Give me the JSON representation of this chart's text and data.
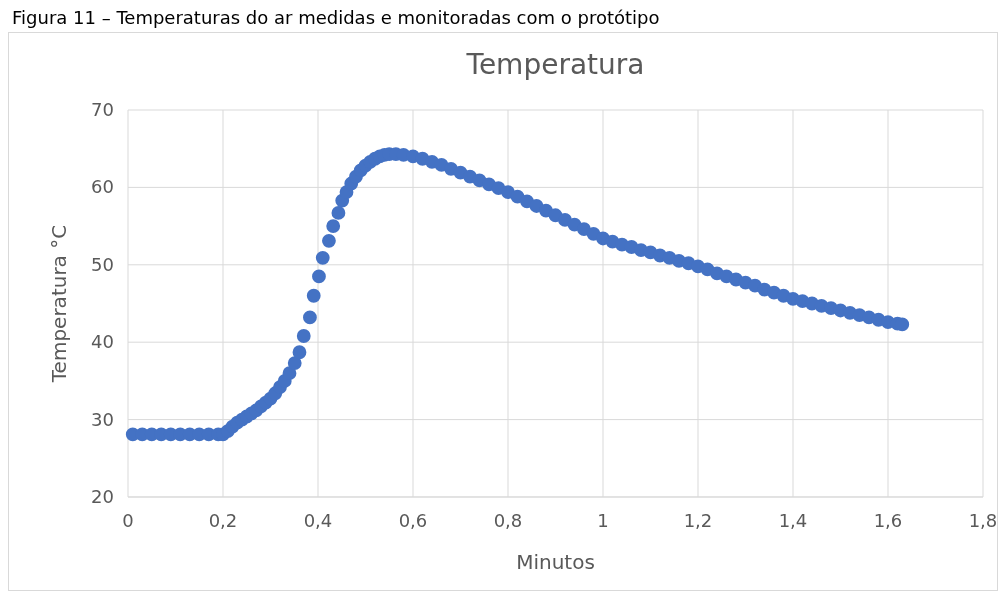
{
  "chart_data": {
    "type": "scatter",
    "title": "Temperatura",
    "xlabel": "Minutos",
    "ylabel": "Temperatura °C",
    "annotations": [
      "Figura 11 – Temperaturas do ar medidas e monitoradas com o protótipo"
    ],
    "xlim": [
      0,
      1.8
    ],
    "xticks": [
      0,
      {
        "value": 0.2,
        "label": "0,2"
      },
      {
        "value": 0.4,
        "label": "0,4"
      },
      {
        "value": 0.6,
        "label": "0,6"
      },
      {
        "value": 0.8,
        "label": "0,8"
      },
      1,
      {
        "value": 1.2,
        "label": "1,2"
      },
      {
        "value": 1.4,
        "label": "1,4"
      },
      {
        "value": 1.6,
        "label": "1,6"
      },
      {
        "value": 1.8,
        "label": "1,8"
      }
    ],
    "ylim": [
      20,
      70
    ],
    "yticks": [
      20,
      30,
      40,
      50,
      60,
      70
    ],
    "grid": true,
    "marker": "circle",
    "series": [
      {
        "color": "#4472c4",
        "x": [
          0.01,
          0.03,
          0.05,
          0.07,
          0.09,
          0.11,
          0.13,
          0.15,
          0.17,
          0.19,
          0.2,
          0.21,
          0.22,
          0.23,
          0.24,
          0.25,
          0.26,
          0.27,
          0.28,
          0.29,
          0.3,
          0.31,
          0.32,
          0.33,
          0.34,
          0.351,
          0.361,
          0.37,
          0.383,
          0.391,
          0.402,
          0.41,
          0.423,
          0.432,
          0.443,
          0.451,
          0.46,
          0.47,
          0.48,
          0.49,
          0.5,
          0.51,
          0.52,
          0.53,
          0.54,
          0.55,
          0.564,
          0.58,
          0.6,
          0.62,
          0.64,
          0.66,
          0.68,
          0.7,
          0.72,
          0.74,
          0.76,
          0.78,
          0.8,
          0.82,
          0.84,
          0.86,
          0.88,
          0.9,
          0.92,
          0.94,
          0.96,
          0.98,
          1,
          1.02,
          1.04,
          1.06,
          1.08,
          1.1,
          1.12,
          1.14,
          1.16,
          1.18,
          1.2,
          1.22,
          1.24,
          1.26,
          1.28,
          1.3,
          1.32,
          1.34,
          1.36,
          1.38,
          1.4,
          1.42,
          1.44,
          1.46,
          1.48,
          1.5,
          1.52,
          1.54,
          1.56,
          1.58,
          1.6,
          1.62,
          1.63
        ],
        "values": [
          28.1,
          28.1,
          28.1,
          28.1,
          28.1,
          28.1,
          28.1,
          28.1,
          28.1,
          28.1,
          28.1,
          28.5,
          29.1,
          29.6,
          30.0,
          30.4,
          30.8,
          31.2,
          31.7,
          32.2,
          32.7,
          33.4,
          34.2,
          35.0,
          36.0,
          37.3,
          38.7,
          40.8,
          43.2,
          46.0,
          48.5,
          50.9,
          53.1,
          55.0,
          56.7,
          58.3,
          59.4,
          60.5,
          61.4,
          62.2,
          62.8,
          63.3,
          63.7,
          64.0,
          64.2,
          64.3,
          64.3,
          64.2,
          64.0,
          63.7,
          63.3,
          62.9,
          62.4,
          61.9,
          61.4,
          60.9,
          60.4,
          59.9,
          59.4,
          58.8,
          58.2,
          57.6,
          57.0,
          56.4,
          55.8,
          55.2,
          54.6,
          54.0,
          53.4,
          53.0,
          52.6,
          52.3,
          51.9,
          51.6,
          51.2,
          50.9,
          50.5,
          50.2,
          49.8,
          49.4,
          48.9,
          48.5,
          48.1,
          47.7,
          47.3,
          46.8,
          46.4,
          46.0,
          45.6,
          45.3,
          45.0,
          44.7,
          44.4,
          44.1,
          43.8,
          43.5,
          43.2,
          42.9,
          42.6,
          42.4,
          42.3
        ]
      }
    ]
  }
}
